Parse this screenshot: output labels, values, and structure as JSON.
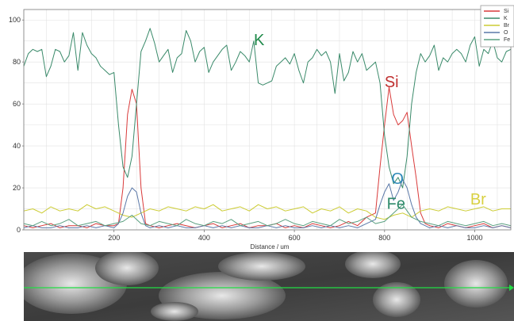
{
  "chart_data": {
    "type": "line",
    "xlabel": "Distance / um",
    "ylabel": "",
    "xlim": [
      0,
      1080
    ],
    "ylim": [
      0,
      105
    ],
    "xticks": [
      200,
      400,
      600,
      800,
      1000
    ],
    "yticks": [
      0,
      20,
      40,
      60,
      80,
      100
    ],
    "grid": true,
    "legend_position": "top-right",
    "series": [
      {
        "name": "Si",
        "color": "#d93a3a",
        "x": [
          0,
          20,
          40,
          60,
          80,
          100,
          120,
          140,
          160,
          180,
          200,
          210,
          220,
          230,
          240,
          250,
          260,
          270,
          280,
          300,
          320,
          340,
          360,
          380,
          400,
          420,
          440,
          460,
          480,
          500,
          520,
          540,
          560,
          580,
          600,
          620,
          640,
          660,
          680,
          700,
          720,
          740,
          760,
          780,
          790,
          800,
          810,
          820,
          830,
          840,
          850,
          860,
          870,
          880,
          890,
          900,
          920,
          940,
          960,
          980,
          1000,
          1020,
          1040,
          1060,
          1080
        ],
        "y": [
          2,
          1,
          2,
          3,
          1,
          2,
          2,
          1,
          3,
          2,
          2,
          3,
          20,
          55,
          67,
          60,
          20,
          3,
          2,
          1,
          2,
          3,
          2,
          1,
          2,
          3,
          1,
          2,
          3,
          1,
          2,
          2,
          3,
          1,
          2,
          1,
          3,
          2,
          1,
          2,
          4,
          2,
          6,
          8,
          30,
          50,
          68,
          55,
          50,
          52,
          56,
          40,
          25,
          8,
          3,
          2,
          1,
          3,
          2,
          1,
          2,
          3,
          1,
          2,
          1
        ]
      },
      {
        "name": "K",
        "color": "#3a8a6a",
        "x": [
          0,
          10,
          20,
          30,
          40,
          50,
          60,
          70,
          80,
          90,
          100,
          110,
          120,
          130,
          140,
          150,
          160,
          170,
          180,
          190,
          200,
          210,
          220,
          230,
          240,
          250,
          260,
          270,
          280,
          290,
          300,
          310,
          320,
          330,
          340,
          350,
          360,
          370,
          380,
          390,
          400,
          410,
          420,
          430,
          440,
          450,
          460,
          470,
          480,
          490,
          500,
          510,
          520,
          530,
          540,
          550,
          560,
          570,
          580,
          590,
          600,
          610,
          620,
          630,
          640,
          650,
          660,
          670,
          680,
          690,
          700,
          710,
          720,
          730,
          740,
          750,
          760,
          770,
          780,
          790,
          800,
          810,
          820,
          830,
          840,
          850,
          860,
          870,
          880,
          890,
          900,
          910,
          920,
          930,
          940,
          950,
          960,
          970,
          980,
          990,
          1000,
          1010,
          1020,
          1030,
          1040,
          1050,
          1060,
          1070,
          1080
        ],
        "y": [
          78,
          84,
          86,
          85,
          86,
          73,
          78,
          86,
          85,
          80,
          83,
          94,
          76,
          94,
          88,
          84,
          82,
          78,
          76,
          74,
          75,
          50,
          30,
          25,
          35,
          60,
          85,
          90,
          96,
          89,
          80,
          83,
          86,
          75,
          82,
          84,
          95,
          90,
          80,
          85,
          87,
          75,
          80,
          83,
          86,
          88,
          76,
          80,
          85,
          83,
          80,
          90,
          70,
          69,
          70,
          71,
          78,
          80,
          82,
          79,
          84,
          76,
          70,
          80,
          82,
          86,
          83,
          85,
          80,
          65,
          84,
          71,
          75,
          85,
          80,
          84,
          76,
          78,
          80,
          70,
          45,
          30,
          22,
          25,
          20,
          35,
          60,
          75,
          84,
          80,
          83,
          88,
          76,
          82,
          80,
          84,
          86,
          84,
          80,
          88,
          92,
          78,
          86,
          84,
          90,
          82,
          80,
          85,
          86
        ]
      },
      {
        "name": "Br",
        "color": "#cccc33",
        "x": [
          0,
          20,
          40,
          60,
          80,
          100,
          120,
          140,
          160,
          180,
          200,
          220,
          240,
          260,
          280,
          300,
          320,
          340,
          360,
          380,
          400,
          420,
          440,
          460,
          480,
          500,
          520,
          540,
          560,
          580,
          600,
          620,
          640,
          660,
          680,
          700,
          720,
          740,
          760,
          780,
          800,
          820,
          840,
          860,
          880,
          900,
          920,
          940,
          960,
          980,
          1000,
          1020,
          1040,
          1060,
          1080
        ],
        "y": [
          9,
          10,
          8,
          11,
          9,
          10,
          9,
          12,
          10,
          11,
          9,
          7,
          6,
          8,
          10,
          9,
          11,
          10,
          9,
          11,
          10,
          12,
          9,
          10,
          11,
          9,
          12,
          10,
          11,
          9,
          10,
          11,
          8,
          10,
          9,
          11,
          8,
          10,
          9,
          6,
          5,
          7,
          8,
          6,
          9,
          10,
          9,
          11,
          10,
          9,
          10,
          11,
          9,
          10,
          10
        ]
      },
      {
        "name": "O",
        "color": "#5a78a8",
        "x": [
          0,
          20,
          40,
          60,
          80,
          100,
          120,
          140,
          160,
          180,
          200,
          210,
          220,
          230,
          240,
          250,
          260,
          270,
          280,
          300,
          320,
          340,
          360,
          380,
          400,
          420,
          440,
          460,
          480,
          500,
          520,
          540,
          560,
          580,
          600,
          620,
          640,
          660,
          680,
          700,
          720,
          740,
          760,
          780,
          790,
          800,
          810,
          820,
          830,
          840,
          850,
          860,
          870,
          880,
          890,
          900,
          920,
          940,
          960,
          980,
          1000,
          1020,
          1040,
          1060,
          1080
        ],
        "y": [
          1,
          2,
          1,
          1,
          2,
          1,
          1,
          2,
          1,
          2,
          1,
          3,
          8,
          16,
          20,
          18,
          8,
          2,
          1,
          2,
          1,
          2,
          1,
          1,
          2,
          1,
          2,
          1,
          2,
          1,
          1,
          2,
          1,
          2,
          1,
          1,
          2,
          1,
          2,
          1,
          2,
          1,
          3,
          5,
          12,
          18,
          22,
          14,
          18,
          24,
          20,
          12,
          6,
          3,
          2,
          1,
          2,
          1,
          2,
          1,
          1,
          2,
          1,
          2,
          1
        ]
      },
      {
        "name": "Fe",
        "color": "#5aa080",
        "x": [
          0,
          20,
          40,
          60,
          80,
          100,
          120,
          140,
          160,
          180,
          200,
          220,
          240,
          260,
          280,
          300,
          320,
          340,
          360,
          380,
          400,
          420,
          440,
          460,
          480,
          500,
          520,
          540,
          560,
          580,
          600,
          620,
          640,
          660,
          680,
          700,
          720,
          740,
          760,
          780,
          800,
          820,
          840,
          860,
          880,
          900,
          920,
          940,
          960,
          980,
          1000,
          1020,
          1040,
          1060,
          1080
        ],
        "y": [
          3,
          2,
          4,
          2,
          3,
          5,
          2,
          3,
          4,
          2,
          3,
          4,
          7,
          3,
          2,
          4,
          3,
          2,
          5,
          3,
          2,
          4,
          3,
          5,
          2,
          3,
          4,
          2,
          3,
          5,
          3,
          2,
          4,
          3,
          2,
          5,
          3,
          4,
          6,
          3,
          4,
          8,
          12,
          6,
          4,
          3,
          2,
          4,
          3,
          2,
          3,
          4,
          2,
          3,
          2
        ]
      }
    ],
    "annotations": [
      {
        "text": "K",
        "color": "#1f8a4a",
        "x": 510,
        "y": 88
      },
      {
        "text": "Si",
        "color": "#c03030",
        "x": 800,
        "y": 68
      },
      {
        "text": "O",
        "color": "#2e8ab8",
        "x": 815,
        "y": 22
      },
      {
        "text": "Fe",
        "color": "#2e8a6a",
        "x": 805,
        "y": 10
      },
      {
        "text": "Br",
        "color": "#d8d040",
        "x": 990,
        "y": 12
      }
    ]
  }
}
